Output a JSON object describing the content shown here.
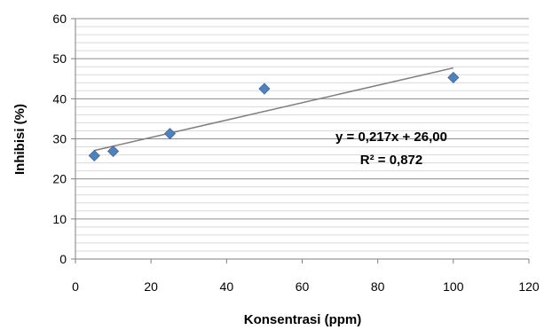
{
  "chart_data": {
    "type": "scatter",
    "xlabel": "Konsentrasi (ppm)",
    "ylabel": "Inhibisi (%)",
    "xlim": [
      0,
      120
    ],
    "ylim": [
      0,
      60
    ],
    "x_ticks": [
      0,
      20,
      40,
      60,
      80,
      100,
      120
    ],
    "y_ticks": [
      0,
      10,
      20,
      30,
      40,
      50,
      60
    ],
    "x_tick_labels": [
      "0",
      "20",
      "40",
      "60",
      "80",
      "100",
      "120"
    ],
    "y_tick_labels": [
      "0",
      "10",
      "20",
      "30",
      "40",
      "50",
      "60"
    ],
    "grid": "horizontal",
    "minor_gridline_step": 2,
    "series": [
      {
        "marker": "diamond",
        "color": "#4f81bd",
        "points": [
          {
            "x": 5,
            "y": 25.8
          },
          {
            "x": 10,
            "y": 26.9
          },
          {
            "x": 25,
            "y": 31.3
          },
          {
            "x": 50,
            "y": 42.5
          },
          {
            "x": 100,
            "y": 45.3
          }
        ]
      }
    ],
    "trendline": {
      "type": "linear",
      "slope": 0.217,
      "intercept": 26.0,
      "x_range": [
        5,
        100
      ],
      "color": "#7f7f7f"
    },
    "annotations": {
      "equation": "y = 0,217x + 26,00",
      "r_squared": "R² = 0,872"
    }
  }
}
